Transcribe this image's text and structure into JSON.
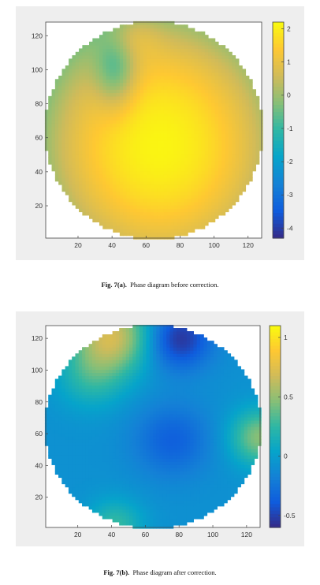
{
  "figures": [
    {
      "id": "a",
      "caption_label": "Fig. 7(a).",
      "caption_text": "Phase diagram before correction.",
      "chart_data": {
        "type": "heatmap",
        "x_ticks": [
          20,
          40,
          60,
          80,
          100,
          120
        ],
        "y_ticks": [
          20,
          40,
          60,
          80,
          100,
          120
        ],
        "xlim": [
          1,
          128
        ],
        "ylim": [
          1,
          128
        ],
        "colorbar": {
          "colormap": "parula",
          "range": [
            -4.3,
            2.2
          ],
          "ticks": [
            2,
            1,
            0,
            -1,
            -2,
            -3,
            -4
          ]
        },
        "aperture": "circular",
        "peak": {
          "x": 68,
          "y": 55,
          "value": 2.1
        }
      }
    },
    {
      "id": "b",
      "caption_label": "Fig. 7(b).",
      "caption_text": "Phase diagram after correction.",
      "chart_data": {
        "type": "heatmap",
        "x_ticks": [
          20,
          40,
          60,
          80,
          100,
          120
        ],
        "y_ticks": [
          20,
          40,
          60,
          80,
          100,
          120
        ],
        "xlim": [
          1,
          128
        ],
        "ylim": [
          1,
          128
        ],
        "colorbar": {
          "colormap": "parula",
          "range": [
            -0.6,
            1.1
          ],
          "ticks": [
            1,
            0.5,
            0,
            -0.5
          ]
        },
        "aperture": "circular"
      }
    }
  ],
  "colors": {
    "parula": [
      "#352a87",
      "#0f5cdd",
      "#1481d6",
      "#06a4ca",
      "#2eb7a4",
      "#87bf77",
      "#d1bb59",
      "#fec832",
      "#f9fb0e"
    ]
  }
}
